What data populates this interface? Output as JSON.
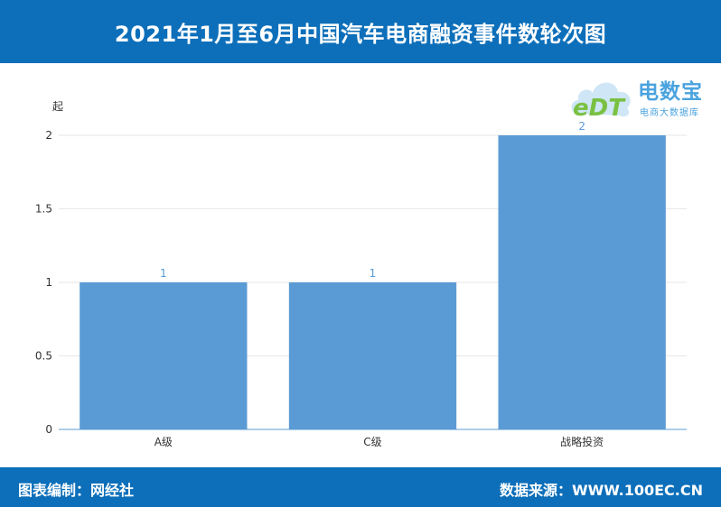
{
  "header": {
    "title": "2021年1月至6月中国汽车电商融资事件数轮次图"
  },
  "logo": {
    "brand_cn": "电数宝",
    "brand_en": "eDT",
    "subtitle": "电商大数据库"
  },
  "footer": {
    "left": "图表编制：网经社",
    "right": "数据来源：WWW.100EC.CN"
  },
  "colors": {
    "header_bg": "#0d6fba",
    "bar": "#5b9bd5",
    "label": "#5b9bd5"
  },
  "chart_data": {
    "type": "bar",
    "title": "",
    "ylabel": "起",
    "xlabel": "",
    "categories": [
      "A级",
      "C级",
      "战略投资"
    ],
    "values": [
      1,
      1,
      2
    ],
    "data_labels": [
      "1",
      "1",
      "2"
    ],
    "ylim": [
      0,
      2
    ],
    "yticks": [
      "0",
      "0.5",
      "1",
      "1.5",
      "2"
    ],
    "grid": true,
    "legend": "none"
  }
}
